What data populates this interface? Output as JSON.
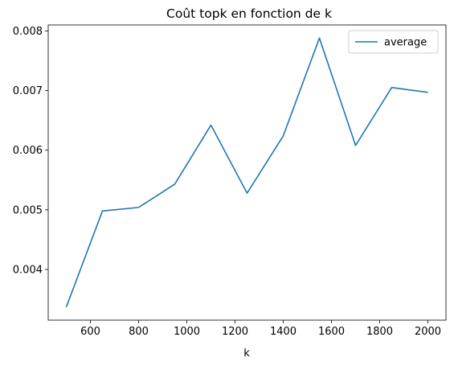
{
  "chart_data": {
    "type": "line",
    "title": "Coût topk en fonction de k",
    "xlabel": "k",
    "ylabel": "",
    "x": [
      500,
      650,
      800,
      950,
      1100,
      1250,
      1400,
      1550,
      1700,
      1850,
      2000
    ],
    "series": [
      {
        "name": "average",
        "color": "#1f77b4",
        "values": [
          0.00337,
          0.00498,
          0.00504,
          0.00543,
          0.00642,
          0.00528,
          0.00624,
          0.00788,
          0.00608,
          0.00705,
          0.00697
        ]
      }
    ],
    "xlim": [
      425,
      2075
    ],
    "ylim": [
      0.00315,
      0.0081
    ],
    "xticks": [
      600,
      800,
      1000,
      1200,
      1400,
      1600,
      1800,
      2000
    ],
    "xtick_labels": [
      "600",
      "800",
      "1000",
      "1200",
      "1400",
      "1600",
      "1800",
      "2000"
    ],
    "yticks": [
      0.004,
      0.005,
      0.006,
      0.007,
      0.008
    ],
    "ytick_labels": [
      "0.004",
      "0.005",
      "0.006",
      "0.007",
      "0.008"
    ],
    "grid": false,
    "legend": "upper-right"
  }
}
